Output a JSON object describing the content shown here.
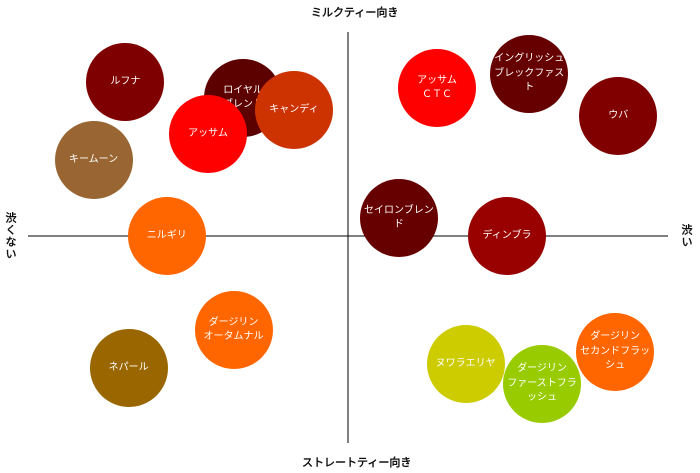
{
  "chart_data": {
    "type": "scatter",
    "axes": {
      "top": "ミルクティー向き",
      "bottom": "ストレートティー向き",
      "left": "渋くない",
      "right": "渋い"
    },
    "teas": [
      {
        "label": "ルフナ",
        "x": -0.7,
        "y": 0.77,
        "color": "#7f0000"
      },
      {
        "label": "ロイヤル\nブレンド",
        "x": -0.33,
        "y": 0.69,
        "color": "#5c0000"
      },
      {
        "label": "キャンディ",
        "x": -0.17,
        "y": 0.63,
        "color": "#cc3300"
      },
      {
        "label": "アッサム",
        "x": -0.44,
        "y": 0.51,
        "color": "#ff0000"
      },
      {
        "label": "キームーン",
        "x": -0.8,
        "y": 0.38,
        "color": "#996633"
      },
      {
        "label": "ニルギリ",
        "x": -0.57,
        "y": -0.0,
        "color": "#ff6600"
      },
      {
        "label": "ダージリン\nオータムナル",
        "x": -0.36,
        "y": -0.47,
        "color": "#ff6600"
      },
      {
        "label": "ネパール",
        "x": -0.69,
        "y": -0.66,
        "color": "#996600"
      },
      {
        "label": "アッサム\nＣＴＣ",
        "x": 0.28,
        "y": 0.74,
        "color": "#ff0000"
      },
      {
        "label": "イングリッシュ\nブレックファスト",
        "x": 0.57,
        "y": 0.81,
        "color": "#660000"
      },
      {
        "label": "ウバ",
        "x": 0.85,
        "y": 0.6,
        "color": "#800000"
      },
      {
        "label": "セイロンブレンド",
        "x": 0.16,
        "y": 0.09,
        "color": "#660000"
      },
      {
        "label": "ディンブラ",
        "x": 0.5,
        "y": -0.0,
        "color": "#990000"
      },
      {
        "label": "ヌワラエリヤ",
        "x": 0.37,
        "y": -0.64,
        "color": "#cccc00"
      },
      {
        "label": "ダージリン\nファーストフラッシュ",
        "x": 0.61,
        "y": -0.74,
        "color": "#99cc00"
      },
      {
        "label": "ダージリン\nセカンドフラッシュ",
        "x": 0.84,
        "y": -0.58,
        "color": "#ff6600"
      }
    ]
  }
}
